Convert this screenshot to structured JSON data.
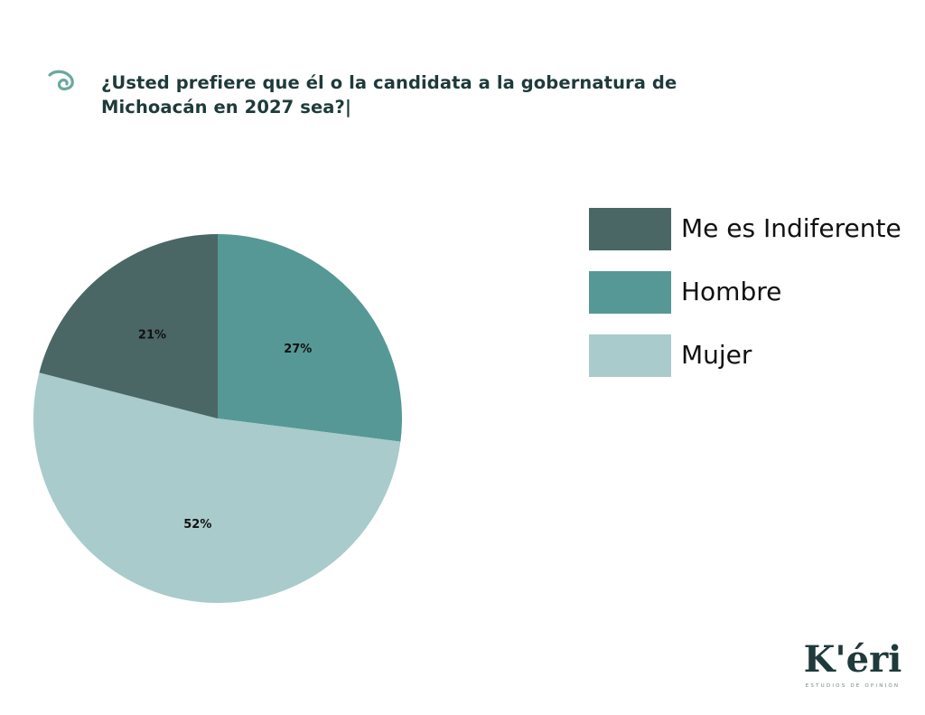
{
  "header": {
    "title": "¿Usted prefiere que él o la candidata a la gobernatura de Michoacán en 2027 sea?|",
    "icon": "spiral-icon"
  },
  "colors": {
    "dark": "#4a6766",
    "mid": "#569896",
    "light": "#a9cbcb",
    "title": "#1f3a3a",
    "accent": "#6aa9a0"
  },
  "chart_data": {
    "type": "pie",
    "title": "¿Usted prefiere que él o la candidata a la gobernatura de Michoacán en 2027 sea?|",
    "slices": [
      {
        "label": "Hombre",
        "value": 27,
        "display": "27%",
        "color": "#569896"
      },
      {
        "label": "Mujer",
        "value": 52,
        "display": "52%",
        "color": "#a9cbcb"
      },
      {
        "label": "Me es Indiferente",
        "value": 21,
        "display": "21%",
        "color": "#4a6766"
      }
    ],
    "start_angle": "12 o'clock",
    "direction": "clockwise",
    "legend": {
      "placement": "right",
      "entries": [
        {
          "label": "Me es Indiferente",
          "color": "#4a6766"
        },
        {
          "label": "Hombre",
          "color": "#569896"
        },
        {
          "label": "Mujer",
          "color": "#a9cbcb"
        }
      ]
    }
  },
  "logo": {
    "name": "K'éri",
    "tagline": "ESTUDIOS DE OPINIÓN"
  }
}
